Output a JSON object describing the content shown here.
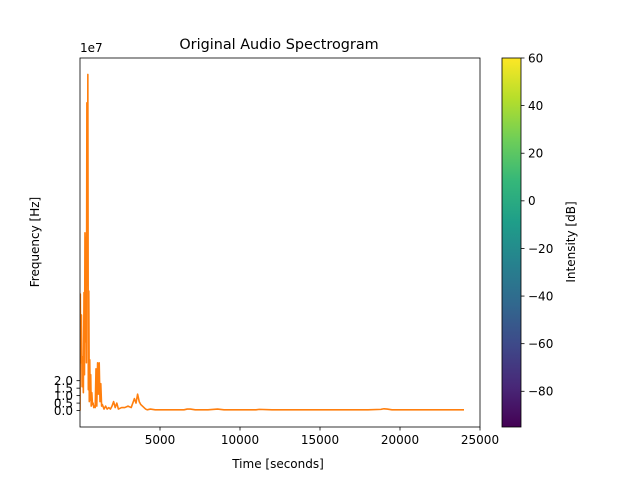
{
  "chart_data": {
    "type": "line",
    "title": "Original Audio Spectrogram",
    "xlabel": "Time [seconds]",
    "ylabel": "Frequency [Hz]",
    "y_offset_label": "1e7",
    "xlim": [
      0,
      25000
    ],
    "ylim": [
      -1.1,
      23.6
    ],
    "y_units_multiplier": 10000000,
    "x_ticks": [
      5000,
      10000,
      15000,
      20000,
      25000
    ],
    "y_ticks": [
      0.0,
      0.5,
      1.0,
      1.5,
      2.0
    ],
    "grid": false,
    "series": [
      {
        "color": "#ff7f0e",
        "x": [
          0,
          20,
          50,
          90,
          130,
          170,
          210,
          250,
          280,
          310,
          340,
          370,
          400,
          430,
          460,
          490,
          520,
          550,
          580,
          610,
          640,
          670,
          700,
          740,
          780,
          820,
          860,
          900,
          950,
          1000,
          1050,
          1100,
          1150,
          1200,
          1250,
          1300,
          1350,
          1400,
          1500,
          1600,
          1700,
          1800,
          1900,
          2000,
          2100,
          2200,
          2300,
          2400,
          2600,
          2800,
          3000,
          3200,
          3400,
          3500,
          3600,
          3700,
          3800,
          3900,
          4000,
          4100,
          4200,
          4400,
          4700,
          5000,
          5500,
          6000,
          6500,
          6700,
          6900,
          7200,
          8000,
          8600,
          9000,
          10000,
          11000,
          11200,
          12000,
          13000,
          14000,
          15000,
          16000,
          17000,
          18000,
          18800,
          19000,
          19200,
          19500,
          20000,
          21000,
          22000,
          23000,
          24000
        ],
        "y": [
          0.0,
          7.8,
          3.2,
          6.4,
          1.6,
          3.6,
          1.2,
          7.9,
          2.4,
          11.9,
          4.6,
          11.6,
          3.2,
          20.6,
          8.4,
          22.5,
          1.4,
          8.0,
          0.6,
          3.4,
          0.7,
          2.4,
          0.3,
          1.2,
          0.4,
          0.5,
          0.2,
          0.3,
          0.2,
          2.8,
          0.3,
          3.2,
          1.1,
          3.2,
          0.6,
          1.8,
          0.3,
          0.4,
          0.1,
          0.3,
          0.1,
          0.2,
          0.1,
          0.3,
          0.6,
          0.2,
          0.5,
          0.1,
          0.2,
          0.2,
          0.3,
          0.2,
          0.8,
          0.5,
          1.1,
          0.6,
          0.4,
          0.3,
          0.2,
          0.1,
          0.05,
          0.1,
          0.05,
          0.05,
          0.05,
          0.05,
          0.05,
          0.1,
          0.1,
          0.05,
          0.05,
          0.1,
          0.05,
          0.05,
          0.05,
          0.08,
          0.05,
          0.05,
          0.05,
          0.05,
          0.05,
          0.05,
          0.05,
          0.08,
          0.12,
          0.1,
          0.05,
          0.05,
          0.05,
          0.05,
          0.05,
          0.05
        ]
      }
    ],
    "colorbar": {
      "label": "Intensity [dB]",
      "range": [
        -95,
        60
      ],
      "ticks": [
        -80,
        -60,
        -40,
        -20,
        0,
        20,
        40,
        60
      ],
      "colormap": "viridis",
      "colors": [
        "#440154",
        "#482878",
        "#3e4989",
        "#31688e",
        "#26828e",
        "#1f9e89",
        "#35b779",
        "#6ece58",
        "#b5de2b",
        "#fde725"
      ]
    }
  }
}
